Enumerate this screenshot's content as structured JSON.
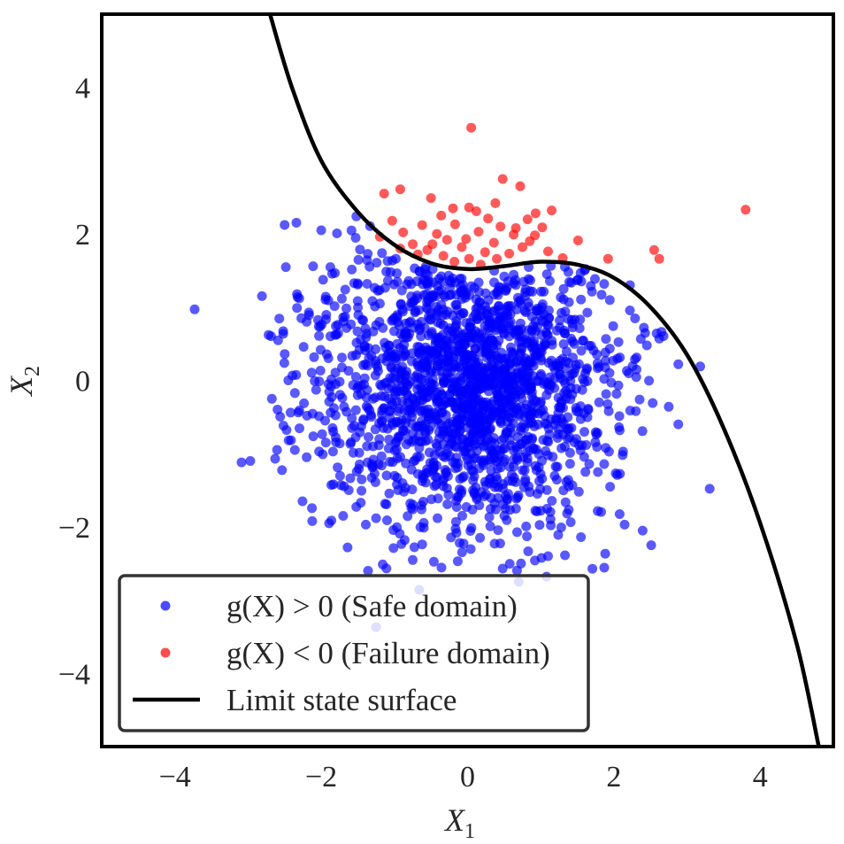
{
  "chart_data": {
    "type": "scatter",
    "title": "",
    "xlabel": "X",
    "xlabel_sub": "1",
    "ylabel": "X",
    "ylabel_sub": "2",
    "xlim": [
      -5,
      5
    ],
    "ylim": [
      -5,
      5
    ],
    "xticks": [
      -4,
      -2,
      0,
      2,
      4
    ],
    "yticks": [
      -4,
      -2,
      0,
      2,
      4
    ],
    "xtick_labels": [
      "−4",
      "−2",
      "0",
      "2",
      "4"
    ],
    "ytick_labels": [
      "−4",
      "−2",
      "0",
      "2",
      "4"
    ],
    "grid": false,
    "legend_position": "lower-left",
    "series": [
      {
        "name": "g(X) > 0 (Safe domain)",
        "kind": "points",
        "color": "#0000ff",
        "note": "about 2000 standard normal samples",
        "points": [
          [
            -3.73,
            0.97
          ],
          [
            -3.09,
            -1.12
          ],
          [
            -2.97,
            -1.1
          ],
          [
            -2.81,
            1.15
          ],
          [
            -2.72,
            0.62
          ],
          [
            -2.63,
            -1.07
          ],
          [
            -2.5,
            0.36
          ],
          [
            -2.45,
            0.0
          ],
          [
            -2.42,
            -0.44
          ],
          [
            -2.36,
            -0.95
          ],
          [
            -2.3,
            1.12
          ],
          [
            -2.2,
            -1.05
          ],
          [
            -2.0,
            2.05
          ],
          [
            -1.98,
            -1.01
          ],
          [
            -1.8,
            0.74
          ],
          [
            -1.73,
            -1.43
          ],
          [
            -1.7,
            -1.85
          ],
          [
            -1.7,
            0.86
          ],
          [
            -1.64,
            -2.28
          ],
          [
            -1.58,
            -0.65
          ],
          [
            -1.52,
            2.24
          ],
          [
            -1.46,
            -1.67
          ],
          [
            -1.4,
            0.41
          ],
          [
            -1.39,
            -1.97
          ],
          [
            -1.36,
            -2.6
          ],
          [
            -1.31,
            -1.33
          ],
          [
            -1.25,
            -3.37
          ],
          [
            -1.1,
            -1.91
          ],
          [
            -0.98,
            1.66
          ],
          [
            -0.86,
            -2.18
          ],
          [
            -0.66,
            -2.86
          ],
          [
            -0.62,
            -2.24
          ],
          [
            0.17,
            -2.15
          ],
          [
            0.37,
            -2.23
          ],
          [
            0.48,
            -2.57
          ],
          [
            0.7,
            -2.75
          ],
          [
            0.73,
            -2.5
          ],
          [
            0.92,
            -2.46
          ],
          [
            1.0,
            -1.78
          ],
          [
            1.08,
            -2.68
          ],
          [
            1.1,
            -2.4
          ],
          [
            1.24,
            -2.11
          ],
          [
            1.33,
            1.55
          ],
          [
            1.55,
            -2.14
          ],
          [
            1.61,
            1.52
          ],
          [
            1.93,
            -0.42
          ],
          [
            1.99,
            0.27
          ],
          [
            2.07,
            -0.64
          ],
          [
            2.12,
            -1.02
          ],
          [
            2.22,
            1.3
          ],
          [
            2.3,
            -0.42
          ],
          [
            2.41,
            0.72
          ],
          [
            2.51,
            -2.25
          ],
          [
            2.53,
            -0.31
          ],
          [
            2.62,
            0.57
          ],
          [
            2.75,
            -0.36
          ],
          [
            2.88,
            -0.6
          ],
          [
            2.88,
            0.22
          ],
          [
            3.18,
            0.19
          ],
          [
            3.31,
            -1.48
          ]
        ],
        "cluster": {
          "mean": [
            0,
            0
          ],
          "std": [
            1,
            1
          ],
          "count": 1950,
          "seed": 17
        }
      },
      {
        "name": "g(X) < 0 (Failure domain)",
        "kind": "points",
        "color": "#ff0000",
        "points": [
          [
            0.05,
            3.45
          ],
          [
            0.48,
            2.75
          ],
          [
            0.72,
            2.65
          ],
          [
            -1.14,
            2.55
          ],
          [
            -0.92,
            2.61
          ],
          [
            -0.5,
            2.49
          ],
          [
            0.38,
            2.42
          ],
          [
            1.15,
            2.32
          ],
          [
            -0.2,
            2.35
          ],
          [
            0.02,
            2.36
          ],
          [
            0.12,
            2.31
          ],
          [
            0.93,
            2.28
          ],
          [
            -0.36,
            2.25
          ],
          [
            0.28,
            2.21
          ],
          [
            0.82,
            2.2
          ],
          [
            -1.03,
            2.18
          ],
          [
            -0.62,
            2.12
          ],
          [
            -0.17,
            2.13
          ],
          [
            0.45,
            2.1
          ],
          [
            1.02,
            2.09
          ],
          [
            -0.88,
            2.02
          ],
          [
            -0.42,
            2.0
          ],
          [
            0.15,
            2.03
          ],
          [
            0.63,
            1.99
          ],
          [
            1.51,
            1.91
          ],
          [
            -1.2,
            1.96
          ],
          [
            -0.28,
            1.92
          ],
          [
            0.36,
            1.88
          ],
          [
            0.85,
            1.9
          ],
          [
            -0.75,
            1.86
          ],
          [
            -0.08,
            1.82
          ],
          [
            -0.55,
            1.78
          ],
          [
            0.24,
            1.75
          ],
          [
            0.57,
            1.73
          ],
          [
            1.1,
            1.76
          ],
          [
            -0.92,
            1.8
          ],
          [
            -0.33,
            1.7
          ],
          [
            0.02,
            1.66
          ],
          [
            0.4,
            1.66
          ],
          [
            -0.18,
            1.62
          ],
          [
            0.18,
            1.58
          ],
          [
            2.55,
            1.78
          ],
          [
            2.62,
            1.66
          ],
          [
            1.92,
            1.66
          ],
          [
            3.8,
            2.33
          ],
          [
            -0.68,
            1.72
          ],
          [
            0.75,
            1.82
          ],
          [
            1.3,
            1.67
          ],
          [
            -0.02,
            1.93
          ],
          [
            0.66,
            2.08
          ],
          [
            -0.48,
            1.86
          ],
          [
            0.92,
            1.98
          ]
        ]
      },
      {
        "name": "Limit state surface",
        "kind": "line",
        "color": "#000000",
        "note": "curve points sampled from the plotted boundary",
        "points": [
          [
            -2.7,
            5.0
          ],
          [
            -2.4,
            4.0
          ],
          [
            -2.0,
            3.0
          ],
          [
            -1.5,
            2.3
          ],
          [
            -1.0,
            1.85
          ],
          [
            -0.5,
            1.6
          ],
          [
            0.0,
            1.52
          ],
          [
            0.5,
            1.56
          ],
          [
            1.0,
            1.62
          ],
          [
            1.5,
            1.58
          ],
          [
            2.0,
            1.4
          ],
          [
            2.5,
            1.0
          ],
          [
            3.0,
            0.35
          ],
          [
            3.5,
            -0.65
          ],
          [
            4.0,
            -1.95
          ],
          [
            4.5,
            -3.6
          ],
          [
            4.8,
            -5.0
          ]
        ]
      }
    ]
  },
  "legend": {
    "items": [
      {
        "label": "g(X) > 0 (Safe domain)",
        "color": "#0000ff",
        "marker": "dot"
      },
      {
        "label": "g(X) < 0 (Failure domain)",
        "color": "#ff0000",
        "marker": "dot"
      },
      {
        "label": "Limit state surface",
        "color": "#000000",
        "marker": "line"
      }
    ]
  }
}
